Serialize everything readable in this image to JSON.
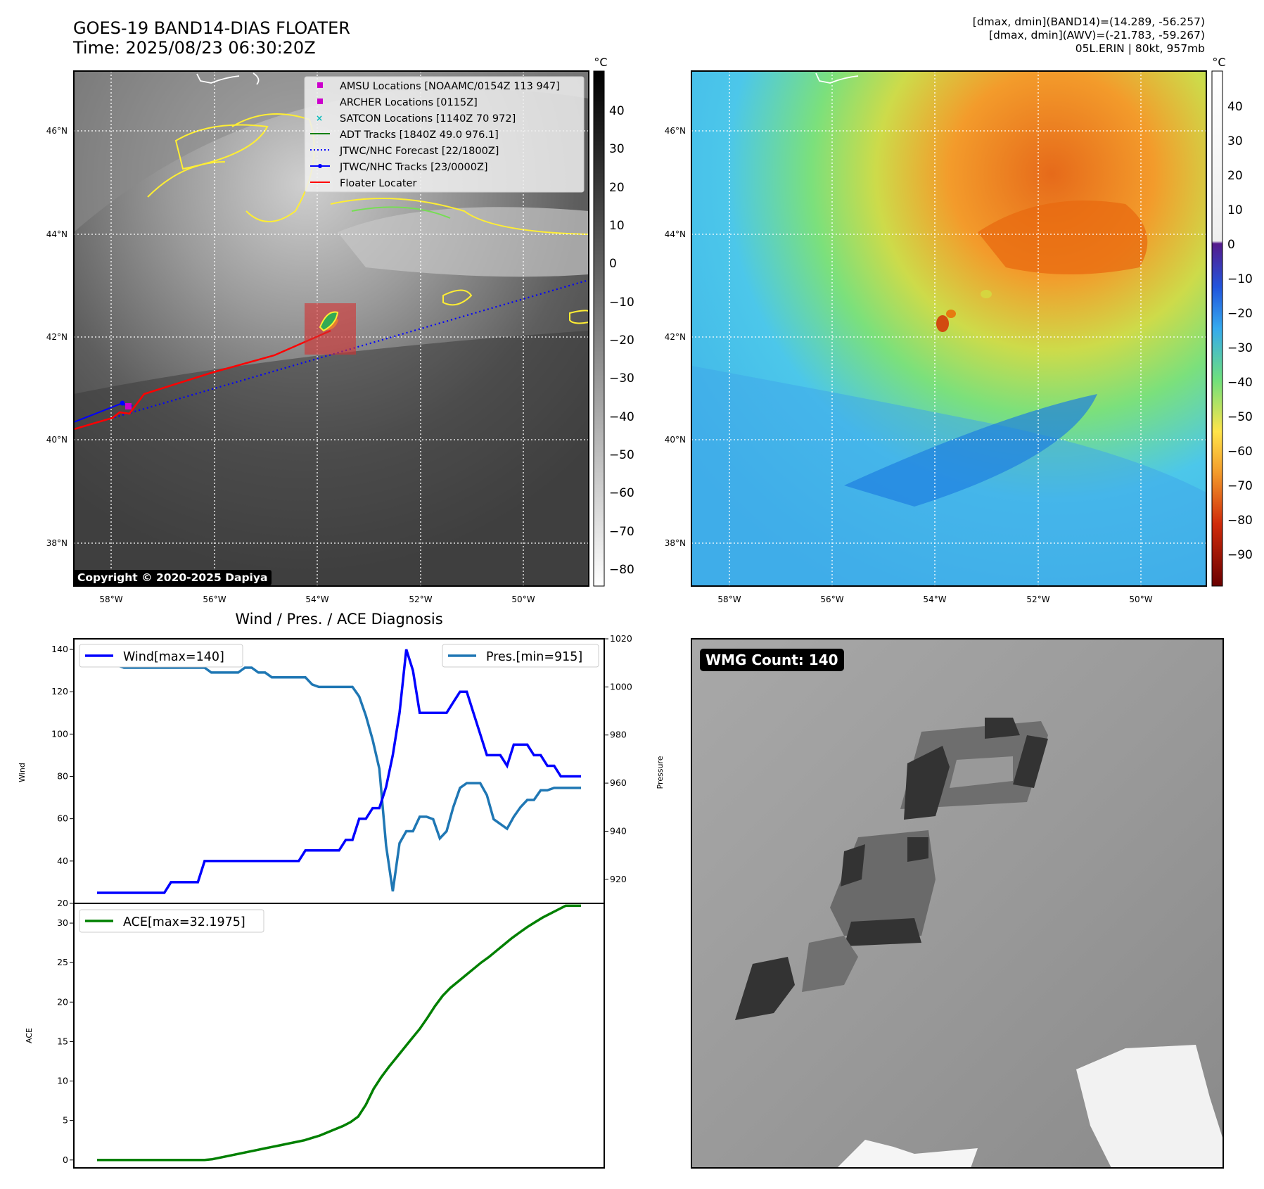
{
  "header": {
    "title_line1": "GOES-19 BAND14-DIAS FLOATER",
    "title_line2": "Time: 2025/08/23 06:30:20Z",
    "info_line1": "[dmax, dmin](BAND14)=(14.289, -56.257)",
    "info_line2": "[dmax, dmin](AWV)=(-21.783, -59.267)",
    "info_line3": "05L.ERIN | 80kt, 957mb"
  },
  "map": {
    "lat_labels": [
      "46°N",
      "44°N",
      "42°N",
      "40°N",
      "38°N"
    ],
    "lon_labels": [
      "58°W",
      "56°W",
      "54°W",
      "52°W",
      "50°W"
    ],
    "copyright": "Copyright © 2020-2025 Dapiya",
    "legend": [
      {
        "label": "AMSU Locations [NOAAMC/0154Z 113 947]",
        "symbol": "square",
        "color": "#cc00cc"
      },
      {
        "label": "ARCHER Locations [0115Z]",
        "symbol": "square",
        "color": "#cc00cc"
      },
      {
        "label": "SATCON Locations [1140Z 70 972]",
        "symbol": "x",
        "color": "#00bbbb"
      },
      {
        "label": "ADT Tracks [1840Z 49.0 976.1]",
        "symbol": "line",
        "color": "#008000"
      },
      {
        "label": "JTWC/NHC Forecast [22/1800Z]",
        "symbol": "dotted",
        "color": "#0000ff"
      },
      {
        "label": "JTWC/NHC Tracks [23/0000Z]",
        "symbol": "line-dot",
        "color": "#0000ff"
      },
      {
        "label": "Floater Locater",
        "symbol": "line",
        "color": "#ff0000"
      }
    ],
    "cbar_ir": {
      "unit": "°C",
      "ticks": [
        "40",
        "30",
        "20",
        "10",
        "0",
        "−10",
        "−20",
        "−30",
        "−40",
        "−50",
        "−60",
        "−70",
        "−80"
      ]
    },
    "cbar_wv": {
      "unit": "°C",
      "ticks": [
        "40",
        "30",
        "20",
        "10",
        "0",
        "−10",
        "−20",
        "−30",
        "−40",
        "−50",
        "−60",
        "−70",
        "−80",
        "−90"
      ]
    }
  },
  "wmg": {
    "label": "WMG Count: 140"
  },
  "chart_data": [
    {
      "type": "line",
      "title": "Wind / Pres. / ACE Diagnosis",
      "ylabel": "Wind",
      "y2label": "Pressure",
      "ylim": [
        20,
        145
      ],
      "y2lim": [
        910,
        1020
      ],
      "yticks": [
        "140",
        "120",
        "100",
        "80",
        "60",
        "40",
        "20"
      ],
      "y2ticks": [
        "1020",
        "1000",
        "980",
        "960",
        "940",
        "920"
      ],
      "series": [
        {
          "name": "Wind[max=140]",
          "color": "#0000ff",
          "values": [
            25,
            25,
            25,
            25,
            25,
            25,
            25,
            25,
            25,
            25,
            25,
            30,
            30,
            30,
            30,
            30,
            40,
            40,
            40,
            40,
            40,
            40,
            40,
            40,
            40,
            40,
            40,
            40,
            40,
            40,
            40,
            45,
            45,
            45,
            45,
            45,
            45,
            50,
            50,
            60,
            60,
            65,
            65,
            75,
            90,
            110,
            140,
            130,
            110,
            110,
            110,
            110,
            110,
            115,
            120,
            120,
            110,
            100,
            90,
            90,
            90,
            85,
            95,
            95,
            95,
            90,
            90,
            85,
            85,
            80,
            80,
            80,
            80
          ]
        },
        {
          "name": "Pres.[min=915]",
          "color": "#1f77b4",
          "values": [
            1014,
            1014,
            1010,
            1009,
            1008,
            1008,
            1008,
            1008,
            1008,
            1008,
            1008,
            1008,
            1008,
            1008,
            1008,
            1008,
            1008,
            1006,
            1006,
            1006,
            1006,
            1006,
            1008,
            1008,
            1006,
            1006,
            1004,
            1004,
            1004,
            1004,
            1004,
            1004,
            1001,
            1000,
            1000,
            1000,
            1000,
            1000,
            1000,
            996,
            988,
            978,
            966,
            934,
            915,
            935,
            940,
            940,
            946,
            946,
            945,
            937,
            940,
            950,
            958,
            960,
            960,
            960,
            955,
            945,
            943,
            941,
            946,
            950,
            953,
            953,
            957,
            957,
            958,
            958,
            958,
            958,
            958
          ]
        }
      ]
    },
    {
      "type": "line",
      "ylabel": "ACE",
      "ylim": [
        -1,
        32.5
      ],
      "yticks": [
        "30",
        "25",
        "20",
        "15",
        "10",
        "5",
        "0"
      ],
      "series": [
        {
          "name": "ACE[max=32.1975]",
          "color": "#008000",
          "values": [
            0,
            0,
            0,
            0,
            0,
            0,
            0,
            0,
            0,
            0,
            0,
            0,
            0,
            0,
            0,
            0.1,
            0.3,
            0.5,
            0.7,
            0.9,
            1.1,
            1.3,
            1.5,
            1.7,
            1.9,
            2.1,
            2.3,
            2.5,
            2.8,
            3.1,
            3.5,
            3.9,
            4.3,
            4.8,
            5.5,
            7.0,
            9.0,
            10.5,
            11.8,
            13.0,
            14.2,
            15.4,
            16.6,
            18.0,
            19.5,
            20.8,
            21.8,
            22.6,
            23.4,
            24.2,
            25.0,
            25.7,
            26.5,
            27.3,
            28.1,
            28.8,
            29.5,
            30.1,
            30.7,
            31.2,
            31.7,
            32.2,
            32.2,
            32.2
          ]
        }
      ]
    }
  ]
}
